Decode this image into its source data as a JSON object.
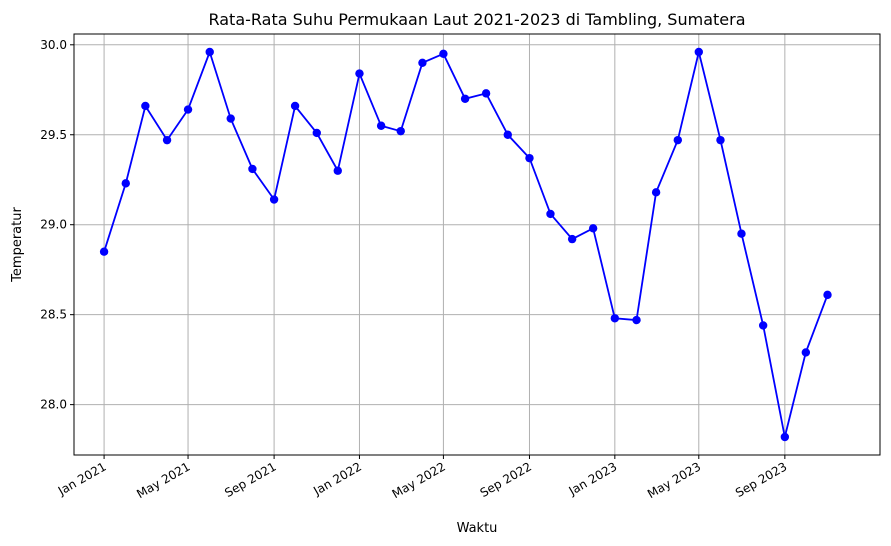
{
  "chart_data": {
    "type": "line",
    "title": "Rata-Rata Suhu Permukaan Laut 2021-2023 di Tambling, Sumatera",
    "xlabel": "Waktu",
    "ylabel": "Temperatur",
    "grid": true,
    "ylim": [
      27.72,
      30.06
    ],
    "xlim": [
      "2020-11-19",
      "2024-01-15"
    ],
    "x_ticks": [
      {
        "date": "2021-01-01",
        "label": "Jan 2021"
      },
      {
        "date": "2021-05-01",
        "label": "May 2021"
      },
      {
        "date": "2021-09-01",
        "label": "Sep 2021"
      },
      {
        "date": "2022-01-01",
        "label": "Jan 2022"
      },
      {
        "date": "2022-05-01",
        "label": "May 2022"
      },
      {
        "date": "2022-09-01",
        "label": "Sep 2022"
      },
      {
        "date": "2023-01-01",
        "label": "Jan 2023"
      },
      {
        "date": "2023-05-01",
        "label": "May 2023"
      },
      {
        "date": "2023-09-01",
        "label": "Sep 2023"
      }
    ],
    "y_ticks": [
      {
        "value": 28.0,
        "label": "28.0"
      },
      {
        "value": 28.5,
        "label": "28.5"
      },
      {
        "value": 29.0,
        "label": "29.0"
      },
      {
        "value": 29.5,
        "label": "29.5"
      },
      {
        "value": 30.0,
        "label": "30.0"
      }
    ],
    "series": [
      {
        "color": "#0000ff",
        "x": [
          "2021-01-01",
          "2021-02-01",
          "2021-03-01",
          "2021-04-01",
          "2021-05-01",
          "2021-06-01",
          "2021-07-01",
          "2021-08-01",
          "2021-09-01",
          "2021-10-01",
          "2021-11-01",
          "2021-12-01",
          "2022-01-01",
          "2022-02-01",
          "2022-03-01",
          "2022-04-01",
          "2022-05-01",
          "2022-06-01",
          "2022-07-01",
          "2022-08-01",
          "2022-09-01",
          "2022-10-01",
          "2022-11-01",
          "2022-12-01",
          "2023-01-01",
          "2023-02-01",
          "2023-03-01",
          "2023-04-01",
          "2023-05-01",
          "2023-06-01",
          "2023-07-01",
          "2023-08-01",
          "2023-09-01",
          "2023-10-01",
          "2023-11-01"
        ],
        "values": [
          28.85,
          29.23,
          29.66,
          29.47,
          29.64,
          29.96,
          29.59,
          29.31,
          29.14,
          29.66,
          29.51,
          29.3,
          29.84,
          29.55,
          29.52,
          29.9,
          29.95,
          29.7,
          29.73,
          29.5,
          29.37,
          29.06,
          28.92,
          28.98,
          28.48,
          28.47,
          29.18,
          29.47,
          29.96,
          29.47,
          28.95,
          28.44,
          27.82,
          28.29,
          28.61
        ]
      }
    ]
  }
}
